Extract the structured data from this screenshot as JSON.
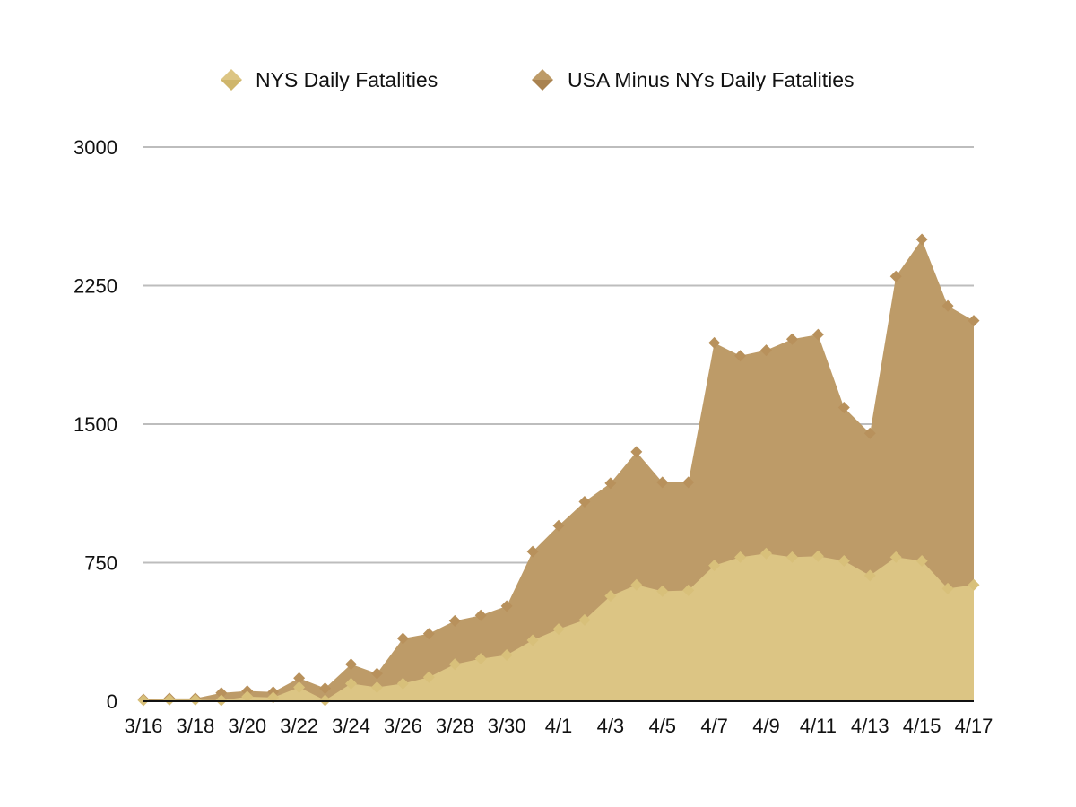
{
  "chart_data": {
    "type": "area",
    "title": "",
    "xlabel": "",
    "ylabel": "",
    "stacked": true,
    "legend_position": "top",
    "grid": true,
    "ylim": [
      0,
      3000
    ],
    "y_ticks": [
      "0",
      "750",
      "1500",
      "2250",
      "3000"
    ],
    "x": [
      "3/16",
      "3/17",
      "3/18",
      "3/19",
      "3/20",
      "3/21",
      "3/22",
      "3/23",
      "3/24",
      "3/25",
      "3/26",
      "3/27",
      "3/28",
      "3/29",
      "3/30",
      "3/31",
      "4/1",
      "4/2",
      "4/3",
      "4/4",
      "4/5",
      "4/6",
      "4/7",
      "4/8",
      "4/9",
      "4/10",
      "4/11",
      "4/12",
      "4/13",
      "4/14",
      "4/15",
      "4/16",
      "4/17"
    ],
    "x_tick_labels": [
      "3/16",
      "3/18",
      "3/20",
      "3/22",
      "3/24",
      "3/26",
      "3/28",
      "3/30",
      "4/1",
      "4/3",
      "4/5",
      "4/7",
      "4/9",
      "4/11",
      "4/13",
      "4/15",
      "4/17"
    ],
    "series": [
      {
        "name": "NYS Daily Fatalities",
        "color": "#dcc584",
        "marker_color": "#d8c07a",
        "values": [
          5,
          8,
          8,
          5,
          25,
          20,
          75,
          5,
          95,
          75,
          95,
          130,
          200,
          230,
          250,
          330,
          390,
          440,
          570,
          630,
          595,
          600,
          735,
          780,
          800,
          780,
          785,
          760,
          680,
          780,
          760,
          610,
          630
        ]
      },
      {
        "name": "USA Minus NYs Daily Fatalities",
        "color": "#bd9b68",
        "marker_color": "#b8915c",
        "values": [
          5,
          7,
          7,
          40,
          30,
          30,
          50,
          65,
          105,
          75,
          245,
          235,
          235,
          235,
          265,
          480,
          560,
          640,
          610,
          720,
          590,
          585,
          1205,
          1090,
          1100,
          1180,
          1200,
          830,
          770,
          1520,
          1740,
          1530,
          1430
        ]
      }
    ]
  }
}
